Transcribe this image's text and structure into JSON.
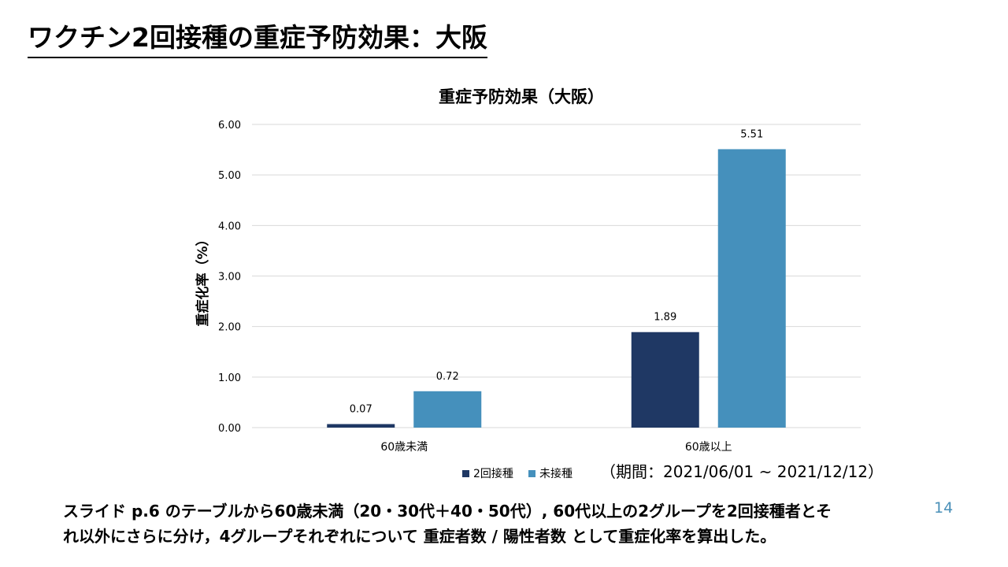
{
  "slide": {
    "title": "ワクチン2回接種の重症予防効果：大阪",
    "period_note": "（期間：2021/06/01 ~ 2021/12/12）",
    "description": "スライド p.6 のテーブルから60歳未満（20・30代＋40・50代）, 60代以上の2グループを2回接種者とそ\nれ以外にさらに分け，4グループそれぞれについて 重症者数 / 陽性者数 として重症化率を算出した。",
    "page_number": "14"
  },
  "colors": {
    "series_2dose": "#1f3864",
    "series_unvaccinated": "#4590bc",
    "gridline": "#d9d9d9",
    "axis_text": "#000000"
  },
  "chart_data": {
    "type": "bar",
    "title": "重症予防効果（大阪）",
    "ylabel": "重症化率（%）",
    "xlabel": "",
    "categories": [
      "60歳未満",
      "60歳以上"
    ],
    "series": [
      {
        "name": "2回接種",
        "values": [
          0.07,
          1.89
        ]
      },
      {
        "name": "未接種",
        "values": [
          0.72,
          5.51
        ]
      }
    ],
    "ylim": [
      0,
      6
    ],
    "yticks": [
      "0.00",
      "1.00",
      "2.00",
      "3.00",
      "4.00",
      "5.00",
      "6.00"
    ],
    "data_labels": [
      [
        "0.07",
        "1.89"
      ],
      [
        "0.72",
        "5.51"
      ]
    ],
    "grid": true,
    "legend_position": "bottom"
  }
}
